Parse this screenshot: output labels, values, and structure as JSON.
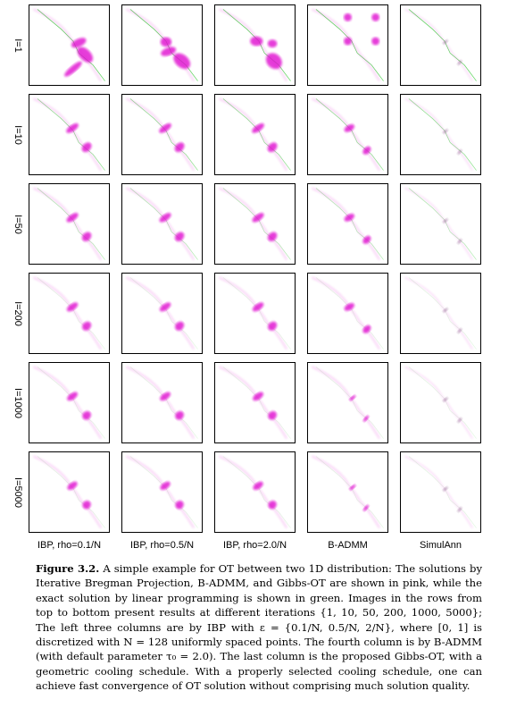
{
  "figure": {
    "row_labels": [
      "I=1",
      "I=10",
      "I=50",
      "I=200",
      "I=1000",
      "I=5000"
    ],
    "column_labels": [
      "IBP, rho=0.1/N",
      "IBP, rho=0.5/N",
      "IBP, rho=2.0/N",
      "B-ADMM",
      "SimulAnn"
    ],
    "colors": {
      "solution": "#e010d0",
      "exact": "#40d040",
      "frame": "#000000"
    }
  },
  "caption": {
    "label": "Figure 3.2.",
    "text": "A simple example for OT between two 1D distribution: The solutions by Iterative Bregman Projection, B-ADMM, and Gibbs-OT are shown in pink, while the exact solution by linear programming is shown in green. Images in the rows from top to bottom present results at different iterations {1, 10, 50, 200, 1000, 5000}; The left three columns are by IBP with ε = {0.1/N, 0.5/N, 2/N}, where [0, 1] is discretized with N = 128 uniformly spaced points. The fourth column is by B-ADMM (with default parameter τ₀ = 2.0). The last column is the proposed Gibbs-OT, with a geometric cooling schedule. With a properly selected cooling schedule, one can achieve fast convergence of OT solution without comprising much solution quality."
  }
}
